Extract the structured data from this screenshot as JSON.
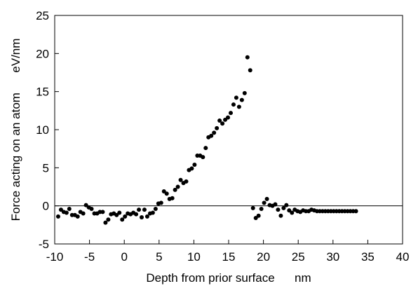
{
  "chart_data": {
    "type": "scatter",
    "title": "",
    "xlabel": "Depth from prior surface      nm",
    "ylabel": "Force acting on an atom      eV/nm",
    "xlim": [
      -10,
      40
    ],
    "ylim": [
      -5,
      25
    ],
    "xticks": [
      -10,
      -5,
      0,
      5,
      10,
      15,
      20,
      25,
      30,
      35,
      40
    ],
    "yticks": [
      -5,
      0,
      5,
      10,
      15,
      20,
      25
    ],
    "zero_line": true,
    "grid": false,
    "legend": "none",
    "marker_color": "#000000",
    "series": [
      {
        "x": [
          -9.5,
          -9.1,
          -8.7,
          -8.3,
          -7.9,
          -7.5,
          -7.1,
          -6.7,
          -6.3,
          -5.9,
          -5.5,
          -5.1,
          -4.7,
          -4.3,
          -3.9,
          -3.5,
          -3.1,
          -2.7,
          -2.3,
          -1.9,
          -1.5,
          -1.1,
          -0.7,
          -0.3,
          0.1,
          0.5,
          0.9,
          1.3,
          1.7,
          2.1,
          2.5,
          2.9,
          3.3,
          3.7,
          4.1,
          4.5,
          4.9,
          5.3,
          5.7,
          6.1,
          6.5,
          6.9,
          7.3,
          7.7,
          8.1,
          8.5,
          8.9,
          9.3,
          9.7,
          10.1,
          10.5,
          10.9,
          11.3,
          11.7,
          12.1,
          12.5,
          12.9,
          13.3,
          13.7,
          14.1,
          14.5,
          14.9,
          15.3,
          15.7,
          16.1,
          16.5,
          16.9,
          17.3,
          17.7,
          18.1,
          18.5,
          18.9,
          19.3,
          19.7,
          20.1,
          20.5,
          20.9,
          21.3,
          21.7,
          22.1,
          22.5,
          22.9,
          23.3,
          23.7,
          24.1,
          24.5,
          24.9,
          25.3,
          25.7,
          26.1,
          26.5,
          26.9,
          27.3,
          27.7,
          28.1,
          28.5,
          28.9,
          29.3,
          29.7,
          30.1,
          30.5,
          30.9,
          31.3,
          31.7,
          32.1,
          32.5,
          32.9,
          33.3
        ],
        "y": [
          -1.4,
          -0.5,
          -0.8,
          -0.9,
          -0.4,
          -1.2,
          -1.2,
          -1.4,
          -0.8,
          -1.0,
          0.1,
          -0.2,
          -0.4,
          -1.0,
          -1.0,
          -0.8,
          -0.8,
          -2.2,
          -1.8,
          -1.1,
          -1.0,
          -1.2,
          -0.9,
          -1.8,
          -1.4,
          -1.0,
          -1.1,
          -0.9,
          -1.1,
          -0.5,
          -1.5,
          -0.5,
          -1.4,
          -1.0,
          -0.9,
          -0.4,
          0.3,
          0.4,
          1.9,
          1.6,
          0.9,
          1.0,
          2.1,
          2.5,
          3.4,
          3.0,
          3.2,
          4.7,
          4.9,
          5.4,
          6.6,
          6.6,
          6.4,
          7.6,
          9.0,
          9.2,
          9.6,
          10.2,
          11.2,
          10.8,
          11.3,
          11.6,
          12.2,
          13.3,
          14.2,
          13.0,
          13.9,
          14.8,
          19.5,
          17.8,
          -0.3,
          -1.6,
          -1.3,
          -0.4,
          0.4,
          0.9,
          0.1,
          0.0,
          0.2,
          -0.5,
          -1.3,
          -0.3,
          0.1,
          -0.6,
          -0.9,
          -0.5,
          -0.7,
          -0.8,
          -0.6,
          -0.7,
          -0.7,
          -0.5,
          -0.6,
          -0.7,
          -0.7,
          -0.7,
          -0.7,
          -0.7,
          -0.7,
          -0.7,
          -0.7,
          -0.7,
          -0.7,
          -0.7,
          -0.7,
          -0.7,
          -0.7,
          -0.7
        ]
      }
    ]
  }
}
